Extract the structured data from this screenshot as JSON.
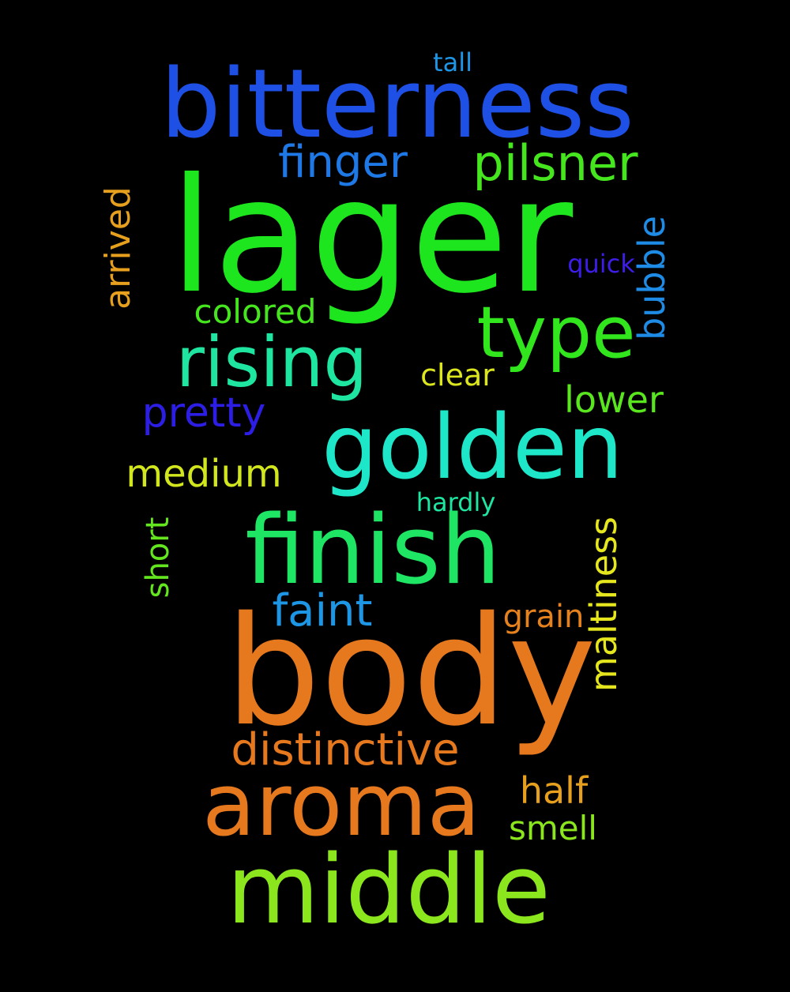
{
  "words": [
    {
      "text": "lager",
      "color": "#1ee61e"
    },
    {
      "text": "body",
      "color": "#e6781e"
    },
    {
      "text": "bitterness",
      "color": "#1e50e6"
    },
    {
      "text": "golden",
      "color": "#1ee6c8"
    },
    {
      "text": "finish",
      "color": "#1ee664"
    },
    {
      "text": "aroma",
      "color": "#e6781e"
    },
    {
      "text": "middle",
      "color": "#8ce61e"
    },
    {
      "text": "rising",
      "color": "#1ee6a0"
    },
    {
      "text": "type",
      "color": "#32e61e"
    },
    {
      "text": "pilsner",
      "color": "#46e61e"
    },
    {
      "text": "finger",
      "color": "#1e78e6"
    },
    {
      "text": "distinctive",
      "color": "#e6781e"
    },
    {
      "text": "pretty",
      "color": "#2d1ee6"
    },
    {
      "text": "faint",
      "color": "#1e96e6"
    },
    {
      "text": "maltiness",
      "color": "#e6e61e"
    },
    {
      "text": "bubble",
      "color": "#1e8ce6"
    },
    {
      "text": "arrived",
      "color": "#e6a01e"
    },
    {
      "text": "medium",
      "color": "#d2e61e"
    },
    {
      "text": "colored",
      "color": "#46e61e"
    },
    {
      "text": "lower",
      "color": "#5ae61e"
    },
    {
      "text": "half",
      "color": "#e6a01e"
    },
    {
      "text": "short",
      "color": "#64e61e"
    },
    {
      "text": "grain",
      "color": "#e6821e"
    },
    {
      "text": "smell",
      "color": "#8ce61e"
    },
    {
      "text": "clear",
      "color": "#dce61e"
    },
    {
      "text": "quick",
      "color": "#3c1ee6"
    },
    {
      "text": "hardly",
      "color": "#1ee6a0"
    },
    {
      "text": "tall",
      "color": "#1e96e6"
    }
  ]
}
